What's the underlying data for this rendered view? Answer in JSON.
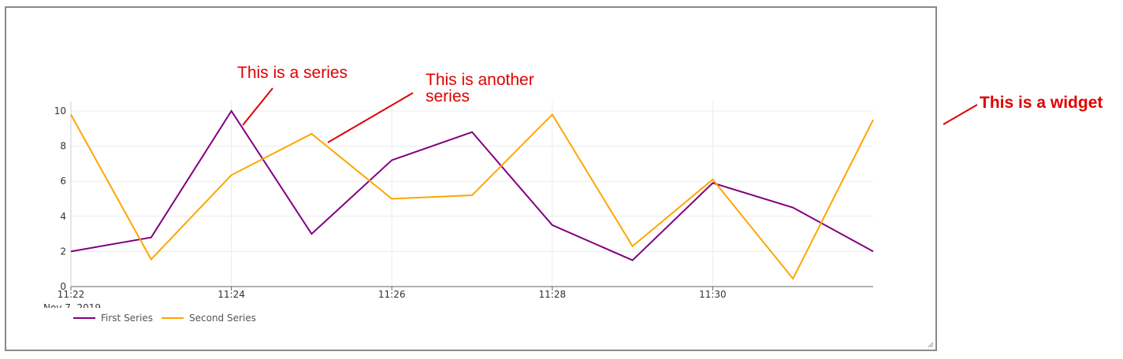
{
  "chart_data": {
    "type": "line",
    "x_labels": [
      "11:22",
      "11:24",
      "11:26",
      "11:28",
      "11:30"
    ],
    "x_sublabel": "Nov 7, 2019",
    "x_range_minutes": [
      0,
      10
    ],
    "x_tick_minutes": [
      0,
      2,
      4,
      6,
      8
    ],
    "ylim": [
      0,
      10
    ],
    "y_ticks": [
      0,
      2,
      4,
      6,
      8,
      10
    ],
    "series": [
      {
        "name": "First Series",
        "color": "#800080",
        "x": [
          0,
          1,
          2,
          3,
          4,
          5,
          6,
          7,
          8,
          9,
          10
        ],
        "values": [
          2.0,
          2.8,
          10.0,
          3.0,
          7.2,
          8.8,
          3.5,
          1.5,
          5.9,
          4.5,
          2.0
        ]
      },
      {
        "name": "Second Series",
        "color": "#ffa500",
        "x": [
          0,
          1,
          2,
          3,
          4,
          5,
          6,
          7,
          8,
          9,
          10
        ],
        "values": [
          9.8,
          1.55,
          6.35,
          8.7,
          5.0,
          5.2,
          9.8,
          2.3,
          6.1,
          0.45,
          9.5
        ]
      }
    ]
  },
  "annotations": {
    "series_label": "This is a series",
    "another_series_line1": "This is another",
    "another_series_line2": "series",
    "widget_label": "This is a widget",
    "color": "#e00000"
  }
}
